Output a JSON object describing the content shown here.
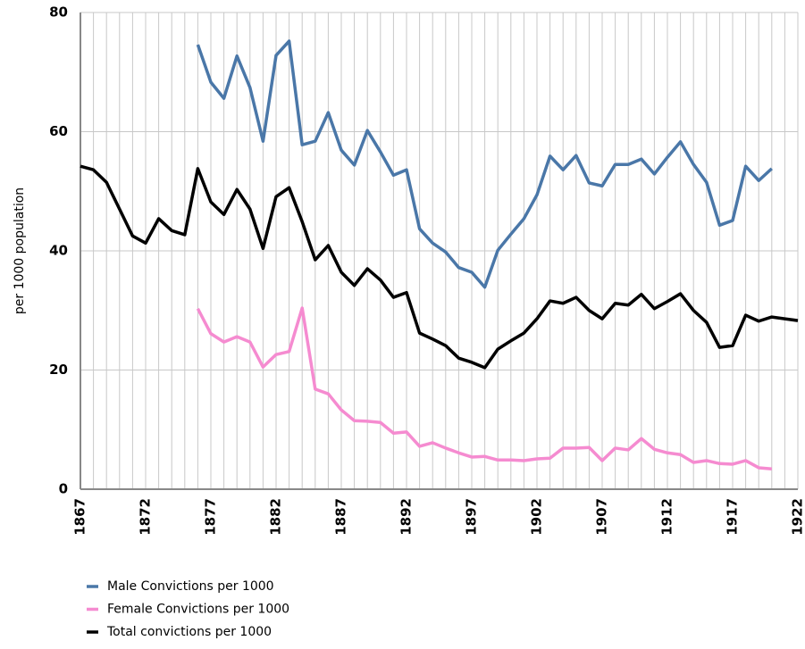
{
  "chart_data": {
    "type": "line",
    "y_label": "per 1000 population",
    "x": [
      1867,
      1868,
      1869,
      1870,
      1871,
      1872,
      1873,
      1874,
      1875,
      1876,
      1877,
      1878,
      1879,
      1880,
      1881,
      1882,
      1883,
      1884,
      1885,
      1886,
      1887,
      1888,
      1889,
      1890,
      1891,
      1892,
      1893,
      1894,
      1895,
      1896,
      1897,
      1898,
      1899,
      1900,
      1901,
      1902,
      1903,
      1904,
      1905,
      1906,
      1907,
      1908,
      1909,
      1910,
      1911,
      1912,
      1913,
      1914,
      1915,
      1916,
      1917,
      1918,
      1919,
      1920,
      1921,
      1922
    ],
    "series": [
      {
        "name": "Male Convictions per 1000",
        "color": "#4a77a8",
        "values": [
          null,
          null,
          null,
          null,
          null,
          null,
          null,
          null,
          null,
          74.6,
          68.3,
          65.6,
          72.7,
          67.4,
          58.4,
          72.8,
          75.2,
          57.8,
          58.4,
          63.2,
          56.9,
          54.4,
          60.2,
          56.6,
          52.7,
          53.6,
          43.7,
          41.3,
          39.8,
          37.2,
          36.4,
          33.9,
          40.1,
          42.8,
          45.4,
          49.4,
          55.9,
          53.6,
          56.0,
          51.4,
          50.9,
          54.5,
          54.5,
          55.4,
          52.9,
          55.7,
          58.3,
          54.5,
          51.5,
          44.3,
          45.1,
          54.2,
          51.8,
          53.8,
          null,
          null
        ]
      },
      {
        "name": "Female Convictions per 1000",
        "color": "#f58bd0",
        "values": [
          null,
          null,
          null,
          null,
          null,
          null,
          null,
          null,
          null,
          30.3,
          26.1,
          24.7,
          25.6,
          24.7,
          20.5,
          22.6,
          23.1,
          30.4,
          16.8,
          16.0,
          13.3,
          11.5,
          11.4,
          11.2,
          9.4,
          9.6,
          7.2,
          7.8,
          6.9,
          6.1,
          5.4,
          5.5,
          4.9,
          4.9,
          4.8,
          5.1,
          5.2,
          6.9,
          6.9,
          7.0,
          4.8,
          6.9,
          6.6,
          8.5,
          6.7,
          6.1,
          5.8,
          4.5,
          4.8,
          4.3,
          4.2,
          4.8,
          3.6,
          3.4,
          null,
          null
        ]
      },
      {
        "name": "Total convictions per 1000",
        "color": "#000000",
        "values": [
          54.2,
          53.6,
          51.5,
          47.0,
          42.5,
          41.3,
          45.4,
          43.4,
          42.7,
          53.8,
          48.2,
          46.1,
          50.3,
          47.0,
          40.4,
          49.1,
          50.6,
          44.9,
          38.5,
          40.9,
          36.4,
          34.2,
          37.0,
          35.1,
          32.2,
          33.0,
          26.2,
          25.2,
          24.1,
          22.0,
          21.3,
          20.4,
          23.5,
          24.9,
          26.2,
          28.6,
          31.6,
          31.2,
          32.2,
          30.0,
          28.6,
          31.2,
          30.9,
          32.7,
          30.3,
          31.5,
          32.8,
          30.0,
          28.0,
          23.8,
          24.1,
          29.2,
          28.2,
          28.9,
          28.6,
          28.3
        ]
      }
    ],
    "xlim": [
      1867,
      1922
    ],
    "xticks": [
      1867,
      1872,
      1877,
      1882,
      1887,
      1892,
      1897,
      1902,
      1907,
      1912,
      1917,
      1922
    ],
    "ylim": [
      0,
      80
    ],
    "yticks": [
      0,
      20,
      40,
      60,
      80
    ],
    "grid": true
  }
}
